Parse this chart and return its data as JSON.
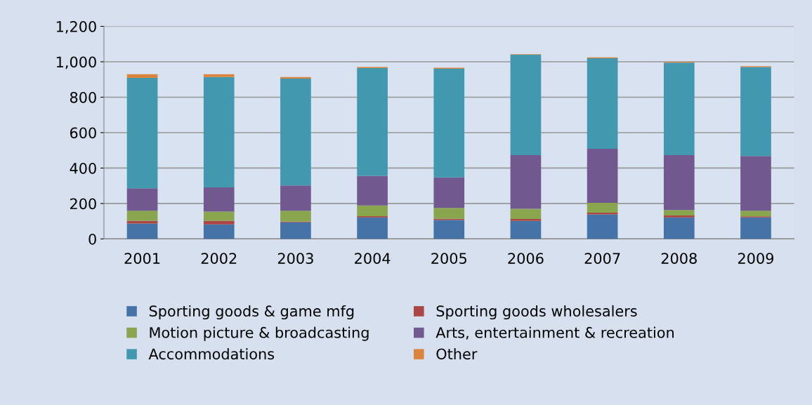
{
  "chart_data": {
    "type": "bar",
    "stacked": true,
    "categories": [
      "2001",
      "2002",
      "2003",
      "2004",
      "2005",
      "2006",
      "2007",
      "2008",
      "2009"
    ],
    "series": [
      {
        "name": "Sporting goods & game mfg",
        "color": "#4572a7",
        "values": [
          87,
          82,
          94,
          122,
          107,
          102,
          138,
          122,
          122
        ]
      },
      {
        "name": "Sporting goods wholesalers",
        "color": "#aa4643",
        "values": [
          16,
          21,
          4,
          6,
          7,
          11,
          10,
          10,
          5
        ]
      },
      {
        "name": "Motion picture & broadcasting",
        "color": "#89a54e",
        "values": [
          56,
          51,
          61,
          61,
          61,
          57,
          56,
          31,
          32
        ]
      },
      {
        "name": "Arts, entertainment & recreation",
        "color": "#71588f",
        "values": [
          127,
          137,
          143,
          167,
          172,
          303,
          305,
          310,
          309
        ]
      },
      {
        "name": "Accommodations",
        "color": "#4198af",
        "values": [
          623,
          623,
          603,
          608,
          613,
          567,
          511,
          522,
          502
        ]
      },
      {
        "name": "Other",
        "color": "#db843d",
        "values": [
          21,
          16,
          9,
          6,
          6,
          3,
          5,
          5,
          5
        ]
      }
    ],
    "ylim": [
      0,
      1200
    ],
    "yticks": [
      0,
      200,
      400,
      600,
      800,
      {
        "value": 1000,
        "label": "1,000"
      },
      {
        "value": 1200,
        "label": "1,200"
      }
    ],
    "grid": "y",
    "legend": "bottom"
  }
}
